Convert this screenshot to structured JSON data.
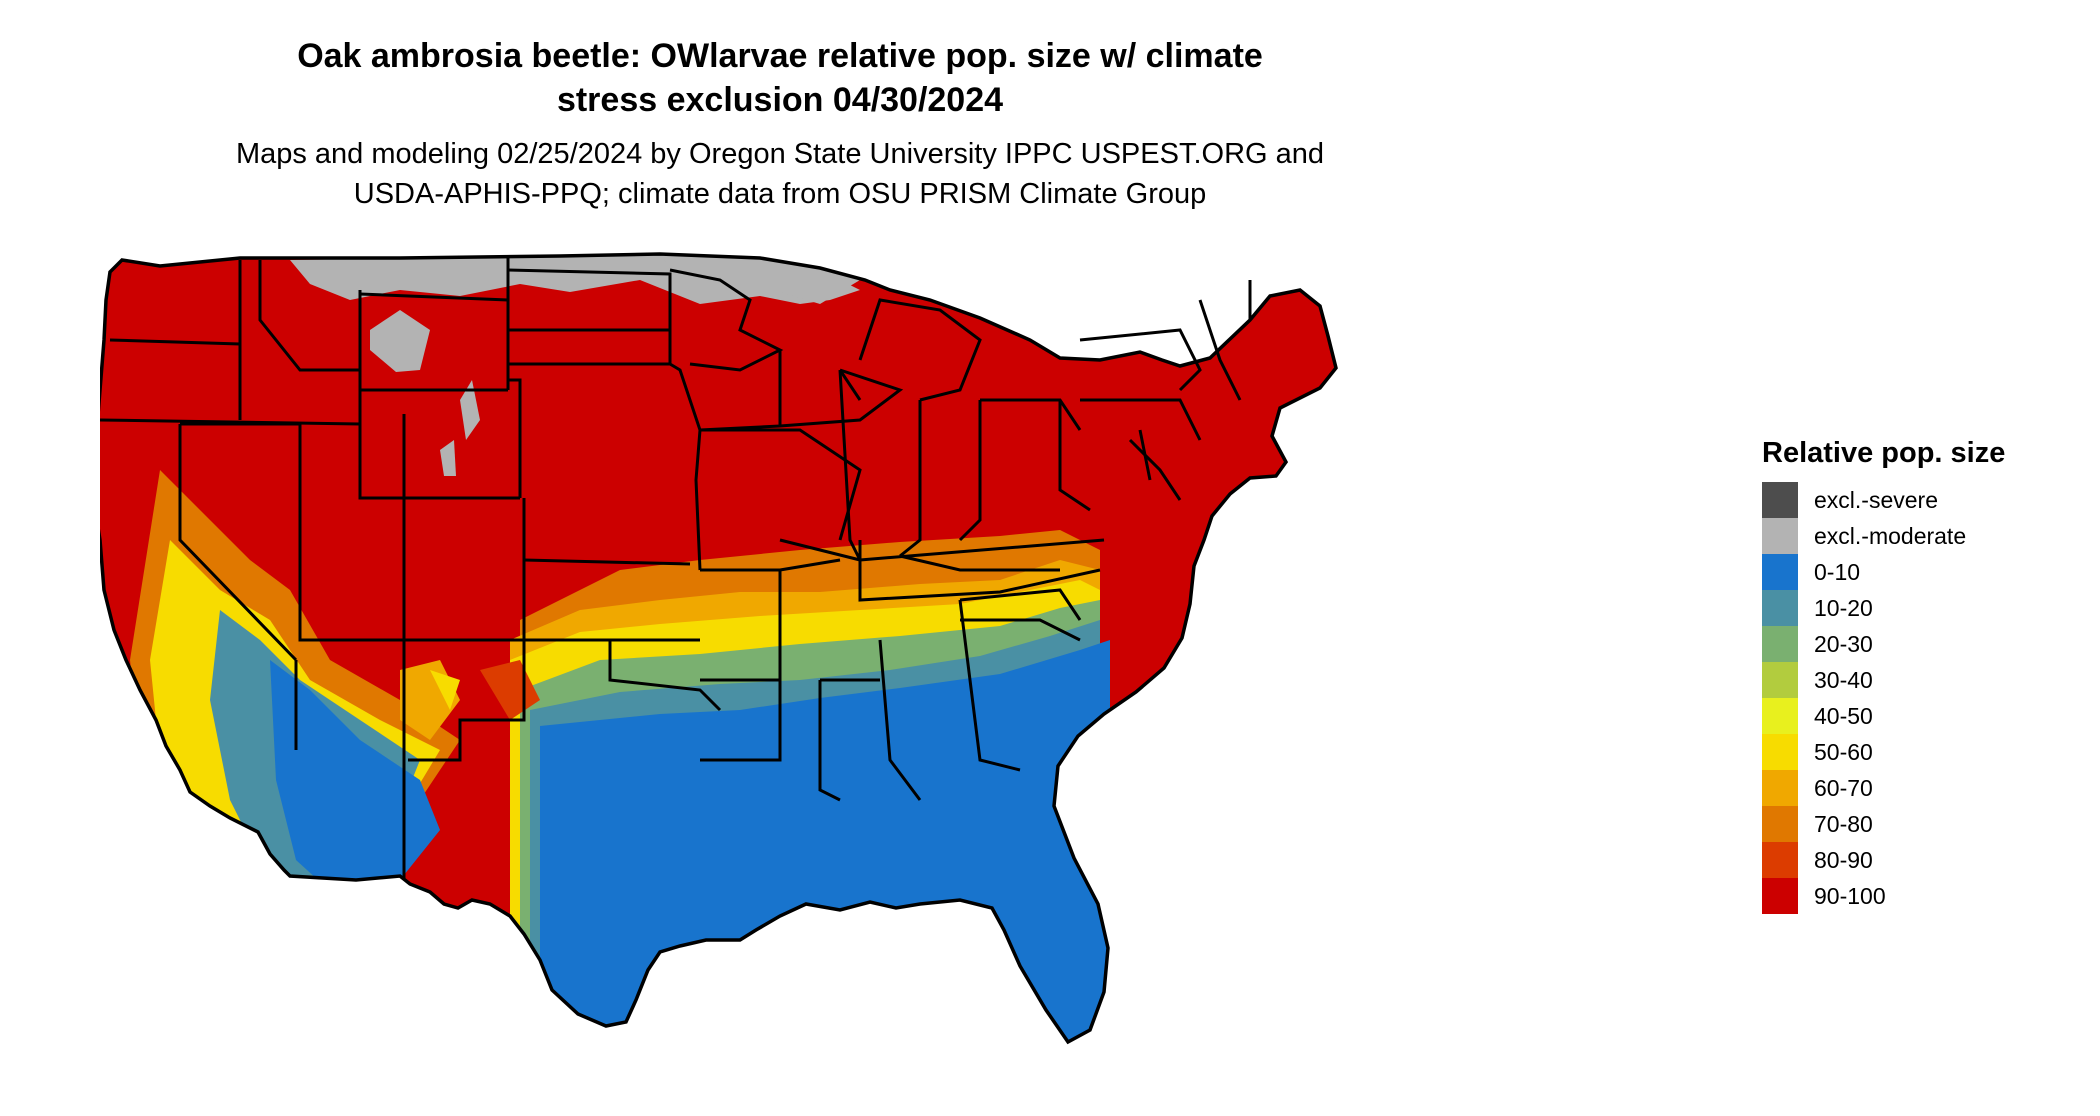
{
  "title_line1": "Oak ambrosia beetle: OWlarvae relative pop. size w/ climate",
  "title_line2": "stress exclusion 04/30/2024",
  "subtitle_line1": "Maps and modeling 02/25/2024 by Oregon State University IPPC USPEST.ORG and",
  "subtitle_line2": "USDA-APHIS-PPQ; climate data from OSU PRISM Climate Group",
  "legend": {
    "title": "Relative pop. size",
    "items": [
      {
        "label": "excl.-severe",
        "color": "#4d4d4d"
      },
      {
        "label": "excl.-moderate",
        "color": "#b3b3b3"
      },
      {
        "label": "0-10",
        "color": "#1874cd"
      },
      {
        "label": "10-20",
        "color": "#4a90a4"
      },
      {
        "label": "20-30",
        "color": "#7ab070"
      },
      {
        "label": "30-40",
        "color": "#b2cc3e"
      },
      {
        "label": "40-50",
        "color": "#e8f01e"
      },
      {
        "label": "50-60",
        "color": "#f7dc00"
      },
      {
        "label": "60-70",
        "color": "#f0a800"
      },
      {
        "label": "70-80",
        "color": "#e07800"
      },
      {
        "label": "80-90",
        "color": "#dc3c00"
      },
      {
        "label": "90-100",
        "color": "#cc0000"
      }
    ]
  }
}
